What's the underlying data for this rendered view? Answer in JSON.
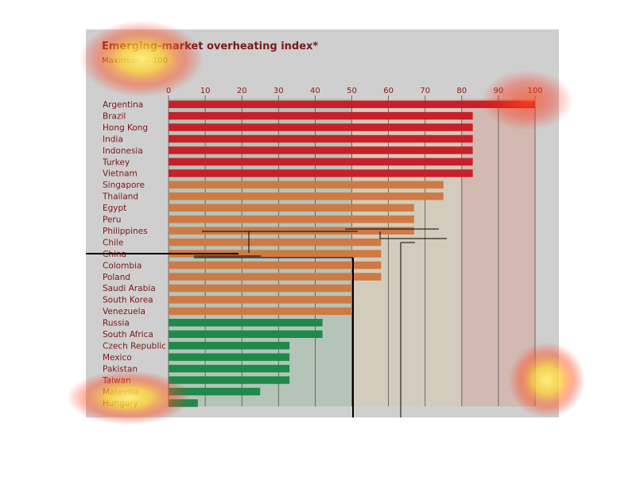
{
  "chart_data": {
    "type": "bar",
    "orientation": "horizontal",
    "title": "Emerging-market overheating index*",
    "subtitle": "Maximum = 100",
    "xlim": [
      0,
      100
    ],
    "xticks": [
      0,
      10,
      20,
      30,
      40,
      50,
      60,
      70,
      80,
      90,
      100
    ],
    "grid": true,
    "categories": [
      "Argentina",
      "Brazil",
      "Hong Kong",
      "India",
      "Indonesia",
      "Turkey",
      "Vietnam",
      "Singapore",
      "Thailand",
      "Egypt",
      "Peru",
      "Philippines",
      "Chile",
      "China",
      "Colombia",
      "Poland",
      "Saudi Arabia",
      "South Korea",
      "Venezuela",
      "Russia",
      "South Africa",
      "Czech Republic",
      "Mexico",
      "Pakistan",
      "Taiwan",
      "Malaysia",
      "Hungary"
    ],
    "values": [
      100,
      83,
      83,
      83,
      83,
      83,
      83,
      75,
      75,
      67,
      67,
      67,
      58,
      58,
      58,
      58,
      50,
      50,
      50,
      42,
      42,
      33,
      33,
      33,
      33,
      25,
      8
    ],
    "bar_colors": [
      "#c8202a",
      "#c8202a",
      "#c8202a",
      "#c8202a",
      "#c8202a",
      "#c8202a",
      "#c8202a",
      "#cf7a45",
      "#cf7a45",
      "#cf7a45",
      "#cf7a45",
      "#cf7a45",
      "#cf7a45",
      "#cf7a45",
      "#cf7a45",
      "#cf7a45",
      "#cf7a45",
      "#cf7a45",
      "#cf7a45",
      "#1e8a4a",
      "#1e8a4a",
      "#1e8a4a",
      "#1e8a4a",
      "#1e8a4a",
      "#1e8a4a",
      "#1e8a4a",
      "#1e8a4a"
    ],
    "band_colors": {
      "low": "#b4c4b8",
      "mid": "#d3cbbb",
      "high": "#d2b9b1"
    },
    "band_edges": [
      0,
      50,
      80,
      100
    ]
  }
}
